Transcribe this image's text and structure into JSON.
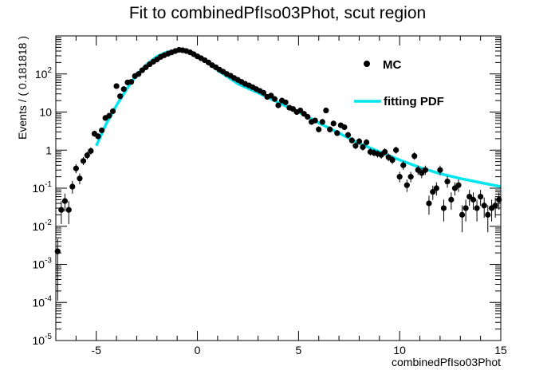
{
  "chart_data": {
    "type": "scatter",
    "title": "Fit to combinedPfIso03Phot, scut region",
    "xlabel": "combinedPfIso03Phot",
    "ylabel": "Events / ( 0.181818 )",
    "xlim": [
      -7,
      15
    ],
    "ylim": [
      1e-05,
      1000
    ],
    "yscale": "log",
    "grid": false,
    "legend_position": "top-right",
    "x_ticks": [
      "-5",
      "0",
      "5",
      "10",
      "15"
    ],
    "y_ticks": [
      {
        "base": "10",
        "exp": "-5",
        "v": 1e-05
      },
      {
        "base": "10",
        "exp": "-4",
        "v": 0.0001
      },
      {
        "base": "10",
        "exp": "-3",
        "v": 0.001
      },
      {
        "base": "10",
        "exp": "-2",
        "v": 0.01
      },
      {
        "base": "10",
        "exp": "-1",
        "v": 0.1
      },
      {
        "base": "1",
        "exp": "",
        "v": 1
      },
      {
        "base": "10",
        "exp": "",
        "v": 10
      },
      {
        "base": "10",
        "exp": "2",
        "v": 100
      }
    ],
    "series": [
      {
        "name": "MC",
        "kind": "points",
        "color": "#000000",
        "points": [
          [
            -6.91,
            0.0022
          ],
          [
            -6.73,
            0.027
          ],
          [
            -6.55,
            0.046
          ],
          [
            -6.36,
            0.027
          ],
          [
            -6.18,
            0.11
          ],
          [
            -6.0,
            0.33
          ],
          [
            -5.82,
            0.18
          ],
          [
            -5.64,
            0.52
          ],
          [
            -5.45,
            0.73
          ],
          [
            -5.27,
            0.95
          ],
          [
            -5.09,
            2.7
          ],
          [
            -4.91,
            2.3
          ],
          [
            -4.73,
            3.3
          ],
          [
            -4.55,
            7.0
          ],
          [
            -4.36,
            8.0
          ],
          [
            -4.18,
            10.5
          ],
          [
            -4.0,
            48
          ],
          [
            -3.82,
            26
          ],
          [
            -3.64,
            40
          ],
          [
            -3.45,
            60
          ],
          [
            -3.27,
            62
          ],
          [
            -3.09,
            88
          ],
          [
            -2.91,
            100
          ],
          [
            -2.73,
            125
          ],
          [
            -2.55,
            150
          ],
          [
            -2.36,
            180
          ],
          [
            -2.18,
            210
          ],
          [
            -2.0,
            240
          ],
          [
            -1.82,
            280
          ],
          [
            -1.64,
            310
          ],
          [
            -1.45,
            340
          ],
          [
            -1.27,
            370
          ],
          [
            -1.09,
            400
          ],
          [
            -0.91,
            430
          ],
          [
            -0.73,
            420
          ],
          [
            -0.55,
            400
          ],
          [
            -0.36,
            370
          ],
          [
            -0.18,
            330
          ],
          [
            0.0,
            290
          ],
          [
            0.18,
            260
          ],
          [
            0.36,
            230
          ],
          [
            0.55,
            200
          ],
          [
            0.73,
            170
          ],
          [
            0.91,
            150
          ],
          [
            1.09,
            130
          ],
          [
            1.27,
            115
          ],
          [
            1.45,
            100
          ],
          [
            1.64,
            90
          ],
          [
            1.82,
            78
          ],
          [
            2.0,
            70
          ],
          [
            2.18,
            62
          ],
          [
            2.36,
            55
          ],
          [
            2.55,
            50
          ],
          [
            2.73,
            45
          ],
          [
            2.91,
            40
          ],
          [
            3.09,
            36
          ],
          [
            3.27,
            32
          ],
          [
            3.45,
            25
          ],
          [
            3.64,
            27
          ],
          [
            3.82,
            22
          ],
          [
            4.0,
            15
          ],
          [
            4.18,
            20
          ],
          [
            4.36,
            18
          ],
          [
            4.55,
            13
          ],
          [
            4.73,
            12
          ],
          [
            4.91,
            10
          ],
          [
            5.09,
            11
          ],
          [
            5.27,
            9
          ],
          [
            5.45,
            7.5
          ],
          [
            5.64,
            5.5
          ],
          [
            5.82,
            6.0
          ],
          [
            6.0,
            3.5
          ],
          [
            6.18,
            5.5
          ],
          [
            6.36,
            11
          ],
          [
            6.55,
            3.5
          ],
          [
            6.73,
            5.0
          ],
          [
            6.91,
            2.8
          ],
          [
            7.09,
            4.5
          ],
          [
            7.27,
            4.0
          ],
          [
            7.45,
            2.5
          ],
          [
            7.64,
            1.8
          ],
          [
            7.82,
            1.3
          ],
          [
            8.0,
            1.7
          ],
          [
            8.18,
            1.2
          ],
          [
            8.36,
            1.6
          ],
          [
            8.55,
            0.9
          ],
          [
            8.73,
            0.85
          ],
          [
            8.91,
            0.8
          ],
          [
            9.09,
            0.75
          ],
          [
            9.27,
            0.9
          ],
          [
            9.45,
            0.65
          ],
          [
            9.64,
            0.55
          ],
          [
            9.82,
            1.0
          ],
          [
            10.0,
            0.2
          ],
          [
            10.18,
            0.4
          ],
          [
            10.36,
            0.12
          ],
          [
            10.55,
            0.2
          ],
          [
            10.73,
            0.7
          ],
          [
            10.91,
            0.3
          ],
          [
            11.09,
            0.25
          ],
          [
            11.27,
            0.3
          ],
          [
            11.45,
            0.04
          ],
          [
            11.64,
            0.08
          ],
          [
            11.82,
            0.1
          ],
          [
            12.0,
            0.3
          ],
          [
            12.18,
            0.03
          ],
          [
            12.36,
            0.15
          ],
          [
            12.55,
            0.05
          ],
          [
            12.73,
            0.1
          ],
          [
            12.91,
            0.12
          ],
          [
            13.09,
            0.02
          ],
          [
            13.27,
            0.03
          ],
          [
            13.45,
            0.06
          ],
          [
            13.64,
            0.05
          ],
          [
            13.82,
            0.03
          ],
          [
            14.0,
            0.06
          ],
          [
            14.18,
            0.035
          ],
          [
            14.36,
            0.02
          ],
          [
            14.55,
            0.03
          ],
          [
            14.73,
            0.035
          ],
          [
            14.91,
            0.05
          ]
        ]
      },
      {
        "name": "fitting PDF",
        "kind": "line",
        "color": "#00e5ee",
        "points": [
          [
            -5.0,
            1.3
          ],
          [
            -4.5,
            5.0
          ],
          [
            -4.0,
            15
          ],
          [
            -3.5,
            40
          ],
          [
            -3.0,
            95
          ],
          [
            -2.5,
            180
          ],
          [
            -2.0,
            290
          ],
          [
            -1.5,
            380
          ],
          [
            -1.0,
            410
          ],
          [
            -0.5,
            390
          ],
          [
            0.0,
            310
          ],
          [
            0.5,
            200
          ],
          [
            1.0,
            125
          ],
          [
            2.0,
            55
          ],
          [
            3.0,
            32
          ],
          [
            4.0,
            18
          ],
          [
            5.0,
            10
          ],
          [
            6.0,
            5.2
          ],
          [
            7.0,
            2.8
          ],
          [
            8.0,
            1.5
          ],
          [
            9.0,
            0.9
          ],
          [
            10.0,
            0.55
          ],
          [
            11.0,
            0.35
          ],
          [
            12.0,
            0.24
          ],
          [
            13.0,
            0.18
          ],
          [
            14.0,
            0.14
          ],
          [
            15.0,
            0.11
          ]
        ]
      }
    ]
  }
}
